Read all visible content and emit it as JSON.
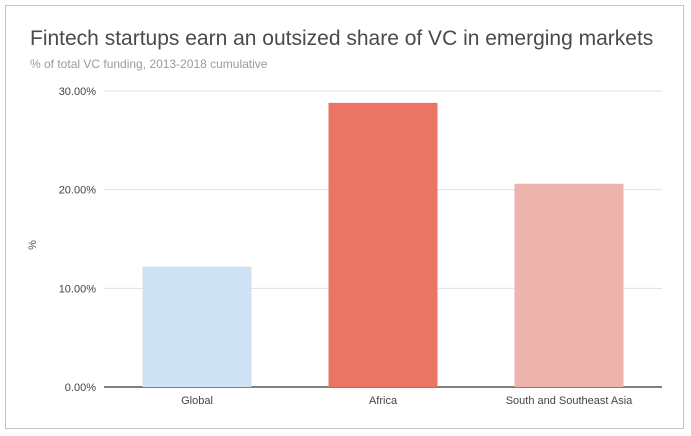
{
  "chart_data": {
    "type": "bar",
    "title": "Fintech startups earn an outsized share of VC in emerging markets",
    "subtitle": "% of total VC funding, 2013-2018 cumulative",
    "xlabel": "",
    "ylabel": "%",
    "categories": [
      "Global",
      "Africa",
      "South and Southeast Asia"
    ],
    "values": [
      12.2,
      28.8,
      20.6
    ],
    "colors": [
      "#cfe2f3",
      "#ea7565",
      "#edb3ad"
    ],
    "ylim": [
      0,
      30
    ],
    "yticks": [
      0,
      10,
      20,
      30
    ],
    "ytick_labels": [
      "0.00%",
      "10.00%",
      "20.00%",
      "30.00%"
    ],
    "grid": true,
    "legend": "none"
  }
}
